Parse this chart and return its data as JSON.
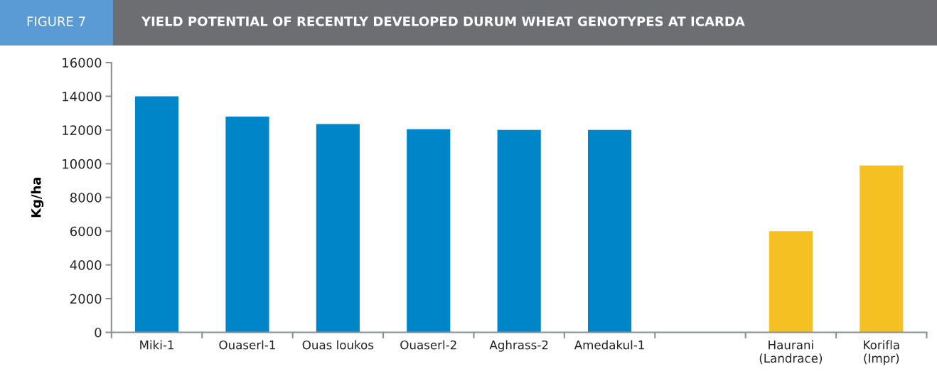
{
  "chart_data": {
    "type": "bar",
    "title": "YIELD POTENTIAL OF RECENTLY DEVELOPED DURUM WHEAT GENOTYPES AT ICARDA",
    "annotations": [
      "FIGURE 7"
    ],
    "ylabel": "Kg/ha",
    "categories": [
      "Miki-1",
      "Ouaserl-1",
      "Ouas loukos",
      "Ouaserl-2",
      "Aghrass-2",
      "Amedakul-1",
      null,
      "Haurani\n(Landrace)",
      "Korifla\n(Impr)"
    ],
    "values": [
      14000,
      12800,
      12350,
      12050,
      12000,
      12000,
      null,
      6000,
      9900
    ],
    "colors": [
      "#0085c8",
      "#0085c8",
      "#0085c8",
      "#0085c8",
      "#0085c8",
      "#0085c8",
      "#0085c8",
      "#f4c022",
      "#f4c022"
    ],
    "ylim": [
      0,
      16000
    ],
    "yticks": [
      0,
      2000,
      4000,
      6000,
      8000,
      10000,
      12000,
      14000,
      16000
    ],
    "grid": false,
    "legend": false
  }
}
